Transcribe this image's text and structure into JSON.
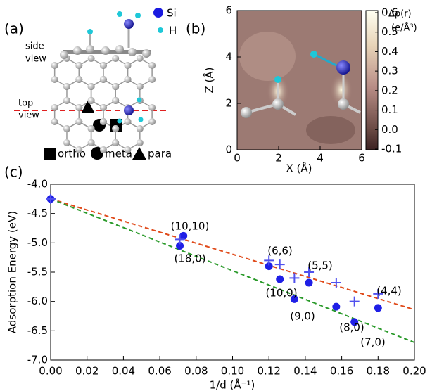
{
  "panel_a": {
    "label": "(a)",
    "side_view": [
      "side",
      "view"
    ],
    "top_view": [
      "top",
      "view"
    ],
    "atoms": [
      "Si",
      "H"
    ],
    "sites": [
      "ortho",
      "meta",
      "para"
    ]
  },
  "panel_b": {
    "label": "(b)",
    "xlabel": "X (Å)",
    "ylabel": "Z (Å)",
    "xlim": [
      0,
      6
    ],
    "ylim": [
      0,
      6
    ],
    "xticks": [
      0,
      2,
      4,
      6
    ],
    "yticks": [
      0,
      2,
      4,
      6
    ],
    "colorbar_title": "Δρ(r)",
    "colorbar_unit": "(e/Å³)",
    "clim": [
      -0.1,
      0.6
    ],
    "cticks": [
      0.6,
      0.5,
      0.4,
      0.3,
      0.2,
      0.1,
      {
        "value": 0,
        "label": "0.0"
      },
      -0.1
    ]
  },
  "chart_data": {
    "type": "scatter",
    "panel_label": "(c)",
    "xlabel": "1/d (Å⁻¹)",
    "ylabel": "Adsorption Energy (eV)",
    "xlim": [
      0,
      0.2
    ],
    "ylim": [
      -7,
      -4
    ],
    "xticks": [
      {
        "value": 0,
        "label": "0.00"
      },
      {
        "value": 0.02,
        "label": "0.02"
      },
      {
        "value": 0.04,
        "label": "0.04"
      },
      {
        "value": 0.06,
        "label": "0.06"
      },
      {
        "value": 0.08,
        "label": "0.08"
      },
      {
        "value": 0.1,
        "label": "0.10"
      },
      {
        "value": 0.12,
        "label": "0.12"
      },
      {
        "value": 0.14,
        "label": "0.14"
      },
      {
        "value": 0.16,
        "label": "0.16"
      },
      {
        "value": 0.18,
        "label": "0.18"
      },
      {
        "value": 0.2,
        "label": "0.20"
      }
    ],
    "yticks": [
      {
        "value": -4,
        "label": "-4.0"
      },
      -4.5,
      {
        "value": -5,
        "label": "-5.0"
      },
      -5.5,
      {
        "value": -6,
        "label": "-6.0"
      },
      -6.5,
      {
        "value": -7,
        "label": "-7.0"
      }
    ],
    "series": [
      {
        "marker": "circle",
        "color": "#1f1fe6",
        "x": [
          0,
          0.071,
          0.073,
          0.12,
          0.126,
          0.134,
          0.142,
          0.157,
          0.167,
          0.18
        ],
        "values": [
          -4.25,
          -5.05,
          -4.88,
          -5.4,
          -5.62,
          -5.96,
          -5.68,
          -6.09,
          -6.35,
          -6.11
        ]
      },
      {
        "marker": "plus",
        "color": "#5050ee",
        "x": [
          0,
          0.071,
          0.12,
          0.126,
          0.134,
          0.142,
          0.157,
          0.167,
          0.18
        ],
        "values": [
          -4.25,
          -4.94,
          -5.3,
          -5.37,
          -5.6,
          -5.5,
          -5.68,
          -6.0,
          -5.87
        ]
      }
    ],
    "lines": [
      {
        "color": "#e04a1a",
        "x": [
          0,
          0.2
        ],
        "values": [
          -4.25,
          -6.14
        ]
      },
      {
        "color": "#2a9a2a",
        "x": [
          0,
          0.2
        ],
        "values": [
          -4.25,
          -6.7
        ]
      }
    ],
    "annotations": [
      "(10,10)",
      "(18,0)",
      "(6,6)",
      "(10,0)",
      "(5,5)",
      "(9,0)",
      "(8,0)",
      "(4,4)",
      "(7,0)"
    ]
  }
}
